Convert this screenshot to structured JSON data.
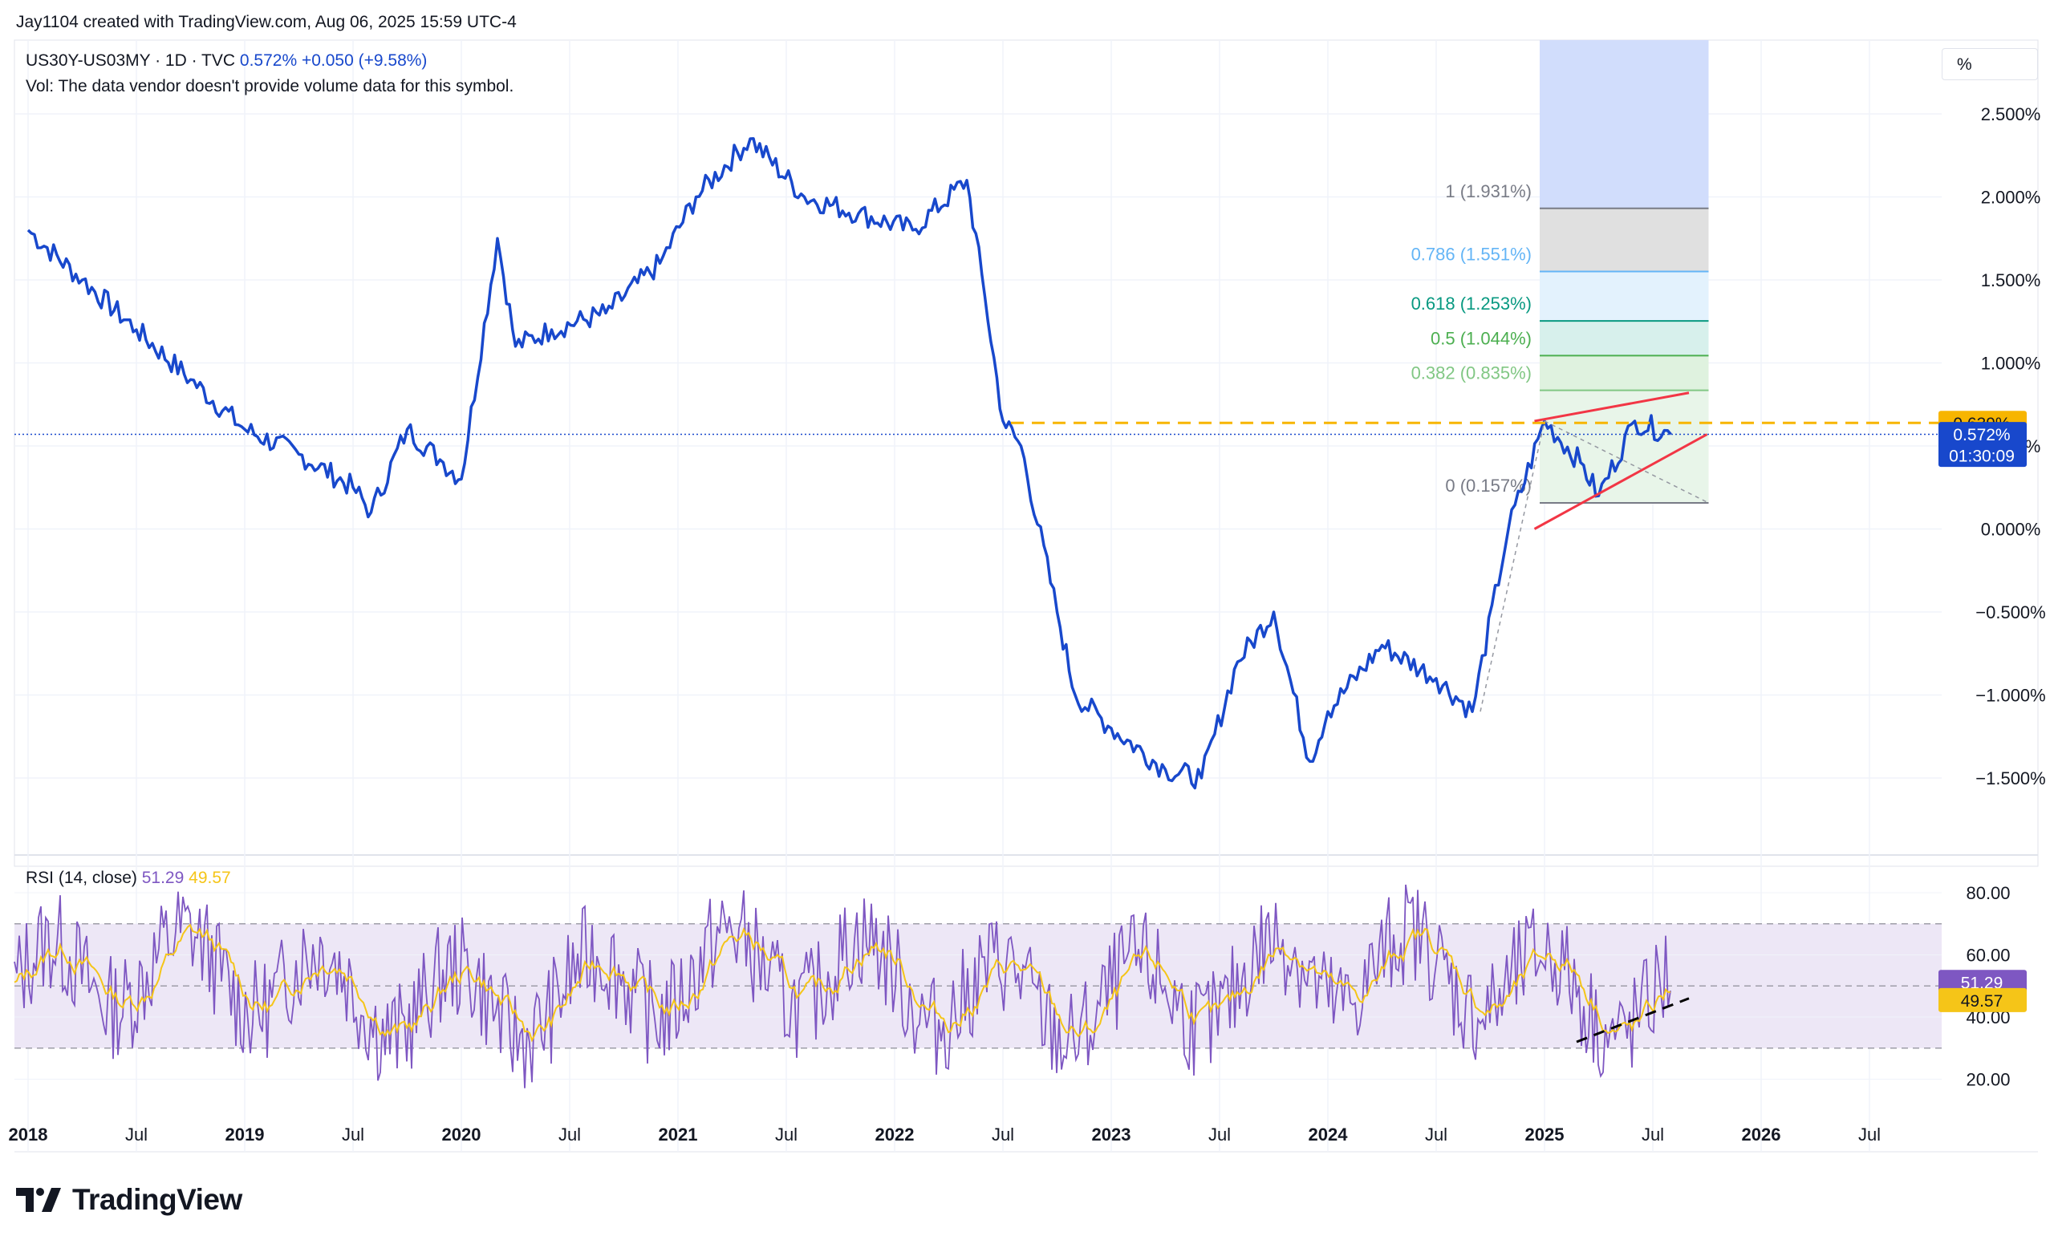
{
  "header": {
    "author_line": "Jay1104 created with TradingView.com, Aug 06, 2025 15:59 UTC-4",
    "symbol": "US30Y-US03MY · 1D · TVC",
    "last_value": "0.572%",
    "change": "+0.050 (+9.58%)",
    "volume_note": "Vol: The data vendor doesn't provide volume data for this symbol."
  },
  "scale_button": "%",
  "price_axis": {
    "labels": [
      "2.500%",
      "2.000%",
      "1.500%",
      "1.000%",
      "0.500%",
      "0.000%",
      "−0.500%",
      "−1.000%",
      "−1.500%"
    ],
    "values": [
      2.5,
      2.0,
      1.5,
      1.0,
      0.5,
      0.0,
      -0.5,
      -1.0,
      -1.5
    ]
  },
  "price_tags": {
    "level": "0.639%",
    "last": "0.572%",
    "countdown": "01:30:09"
  },
  "fib_levels": [
    {
      "label": "1 (1.931%)",
      "value": 1.931,
      "color": "#787b86"
    },
    {
      "label": "0.786 (1.551%)",
      "value": 1.551,
      "color": "#64b5f6"
    },
    {
      "label": "0.618 (1.253%)",
      "value": 1.253,
      "color": "#089981"
    },
    {
      "label": "0.5 (1.044%)",
      "value": 1.044,
      "color": "#4caf50"
    },
    {
      "label": "0.382 (0.835%)",
      "value": 0.835,
      "color": "#81c784"
    },
    {
      "label": "0 (0.157%)",
      "value": 0.157,
      "color": "#787b86"
    }
  ],
  "rsi": {
    "title": "RSI (14, close)",
    "value": "51.29",
    "ma_value": "49.57",
    "axis_labels": [
      "80.00",
      "60.00",
      "40.00",
      "20.00"
    ],
    "axis_values": [
      80,
      60,
      40,
      20
    ],
    "band_upper": 70,
    "band_lower": 30,
    "midline": 50,
    "colors": {
      "rsi": "#7e57c2",
      "ma": "#f5c518",
      "band": "#ede7f6"
    }
  },
  "time_axis": {
    "labels": [
      "2018",
      "Jul",
      "2019",
      "Jul",
      "2020",
      "Jul",
      "2021",
      "Jul",
      "2022",
      "Jul",
      "2023",
      "Jul",
      "2024",
      "Jul",
      "2025",
      "Jul",
      "2026",
      "Jul"
    ],
    "bold": [
      true,
      false,
      true,
      false,
      true,
      false,
      true,
      false,
      true,
      false,
      true,
      false,
      true,
      false,
      true,
      false,
      true,
      false
    ]
  },
  "logo": "TradingView",
  "chart_data": {
    "type": "line",
    "title": "US30Y-US03MY · 1D · TVC",
    "ylabel": "%",
    "ylim": [
      -1.9,
      2.85
    ],
    "x": [
      "2018-01",
      "2018-04",
      "2018-07",
      "2018-10",
      "2019-01",
      "2019-04",
      "2019-07",
      "2019-08",
      "2019-10",
      "2019-12",
      "2020-01",
      "2020-03",
      "2020-04",
      "2020-06",
      "2020-09",
      "2020-12",
      "2021-02",
      "2021-05",
      "2021-08",
      "2021-11",
      "2022-02",
      "2022-05",
      "2022-06",
      "2022-07",
      "2022-08",
      "2022-10",
      "2022-11",
      "2023-01",
      "2023-04",
      "2023-06",
      "2023-08",
      "2023-10",
      "2023-12",
      "2024-01",
      "2024-04",
      "2024-07",
      "2024-09",
      "2024-11",
      "2025-01",
      "2025-03",
      "2025-04",
      "2025-06",
      "2025-08"
    ],
    "series": [
      {
        "name": "US30Y-US03MY",
        "color": "#1848cc",
        "values": [
          1.8,
          1.5,
          1.2,
          0.9,
          0.6,
          0.45,
          0.25,
          0.1,
          0.6,
          0.4,
          0.3,
          1.75,
          1.1,
          1.2,
          1.3,
          1.6,
          2.0,
          2.35,
          2.0,
          1.9,
          1.8,
          2.1,
          1.4,
          0.65,
          0.5,
          -0.5,
          -1.0,
          -1.2,
          -1.45,
          -1.5,
          -0.8,
          -0.5,
          -1.4,
          -1.1,
          -0.7,
          -0.9,
          -1.1,
          0.0,
          0.65,
          0.4,
          0.2,
          0.65,
          0.57
        ]
      }
    ],
    "rsi_series": {
      "name": "RSI (14, close)",
      "last": 51.29,
      "ma_last": 49.57,
      "range": [
        15,
        85
      ]
    },
    "annotations": [
      "Fibonacci retracement 0 (0.157%) to 1 (1.931%)",
      "rising wedge trendlines",
      "dashed horizontal level 0.639%",
      "RSI bearish divergence trendline"
    ]
  }
}
